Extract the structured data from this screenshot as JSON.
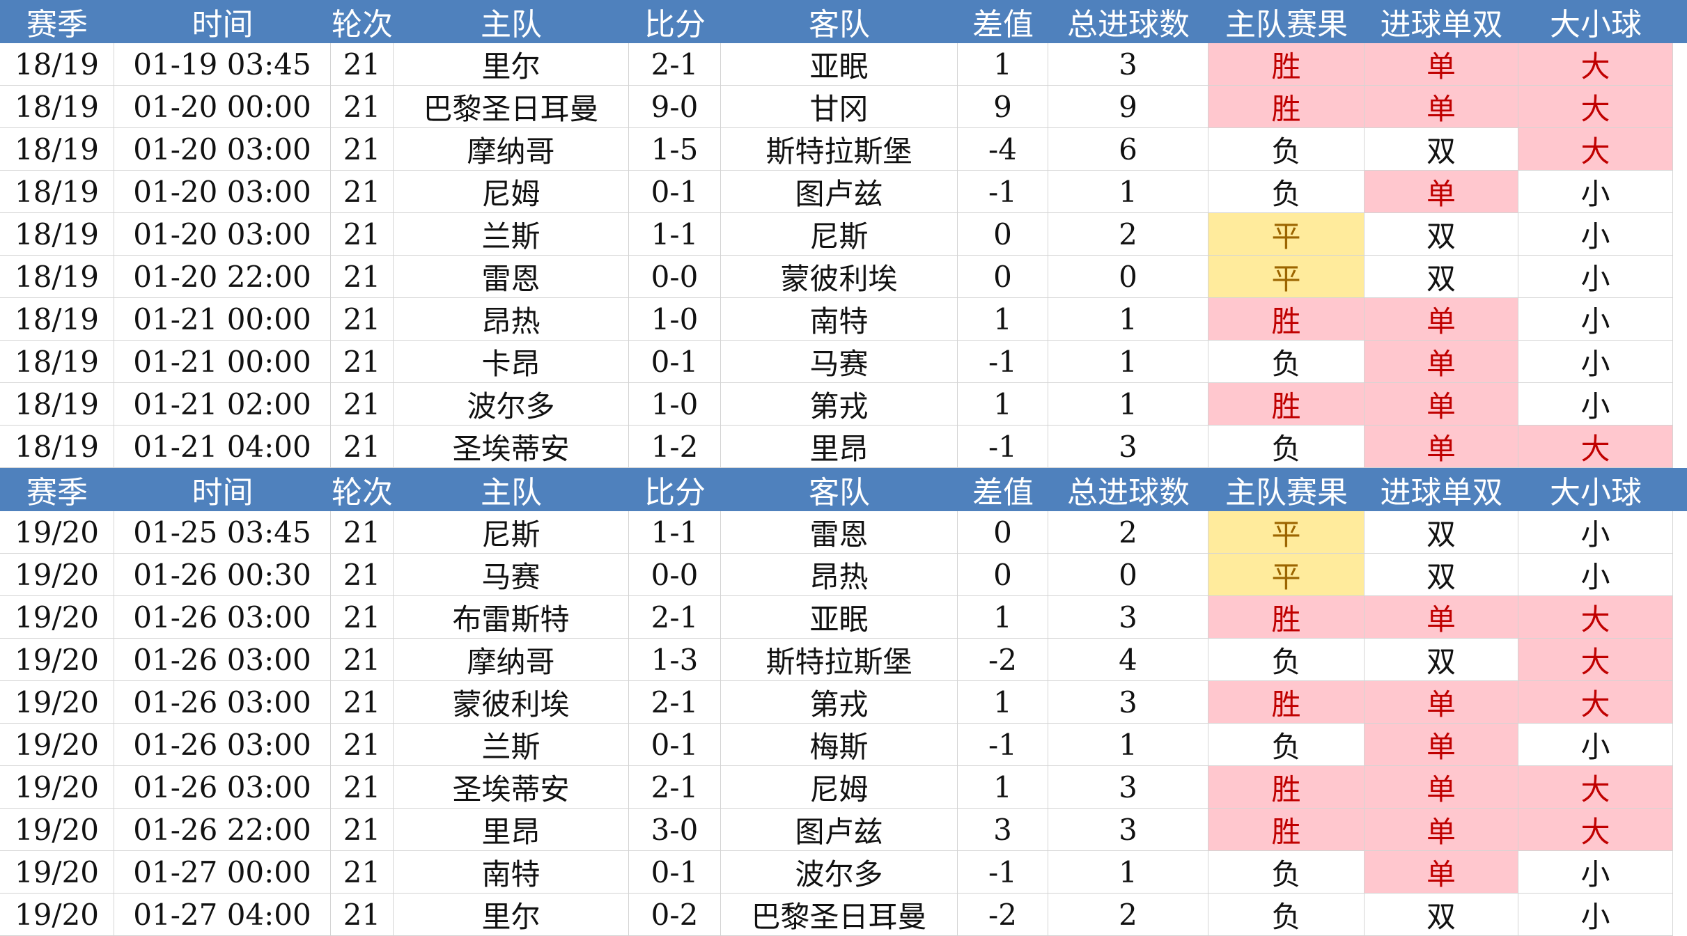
{
  "headers": [
    "赛季",
    "时间",
    "轮次",
    "主队",
    "比分",
    "客队",
    "差值",
    "总进球数",
    "主队赛果",
    "进球单双",
    "大小球"
  ],
  "block1": [
    [
      "18/19",
      "01-19 03:45",
      "21",
      "里尔",
      "2-1",
      "亚眠",
      "1",
      "3",
      "胜",
      "单",
      "大"
    ],
    [
      "18/19",
      "01-20 00:00",
      "21",
      "巴黎圣日耳曼",
      "9-0",
      "甘冈",
      "9",
      "9",
      "胜",
      "单",
      "大"
    ],
    [
      "18/19",
      "01-20 03:00",
      "21",
      "摩纳哥",
      "1-5",
      "斯特拉斯堡",
      "-4",
      "6",
      "负",
      "双",
      "大"
    ],
    [
      "18/19",
      "01-20 03:00",
      "21",
      "尼姆",
      "0-1",
      "图卢兹",
      "-1",
      "1",
      "负",
      "单",
      "小"
    ],
    [
      "18/19",
      "01-20 03:00",
      "21",
      "兰斯",
      "1-1",
      "尼斯",
      "0",
      "2",
      "平",
      "双",
      "小"
    ],
    [
      "18/19",
      "01-20 22:00",
      "21",
      "雷恩",
      "0-0",
      "蒙彼利埃",
      "0",
      "0",
      "平",
      "双",
      "小"
    ],
    [
      "18/19",
      "01-21 00:00",
      "21",
      "昂热",
      "1-0",
      "南特",
      "1",
      "1",
      "胜",
      "单",
      "小"
    ],
    [
      "18/19",
      "01-21 00:00",
      "21",
      "卡昂",
      "0-1",
      "马赛",
      "-1",
      "1",
      "负",
      "单",
      "小"
    ],
    [
      "18/19",
      "01-21 02:00",
      "21",
      "波尔多",
      "1-0",
      "第戎",
      "1",
      "1",
      "胜",
      "单",
      "小"
    ],
    [
      "18/19",
      "01-21 04:00",
      "21",
      "圣埃蒂安",
      "1-2",
      "里昂",
      "-1",
      "3",
      "负",
      "单",
      "大"
    ]
  ],
  "block2": [
    [
      "19/20",
      "01-25 03:45",
      "21",
      "尼斯",
      "1-1",
      "雷恩",
      "0",
      "2",
      "平",
      "双",
      "小"
    ],
    [
      "19/20",
      "01-26 00:30",
      "21",
      "马赛",
      "0-0",
      "昂热",
      "0",
      "0",
      "平",
      "双",
      "小"
    ],
    [
      "19/20",
      "01-26 03:00",
      "21",
      "布雷斯特",
      "2-1",
      "亚眠",
      "1",
      "3",
      "胜",
      "单",
      "大"
    ],
    [
      "19/20",
      "01-26 03:00",
      "21",
      "摩纳哥",
      "1-3",
      "斯特拉斯堡",
      "-2",
      "4",
      "负",
      "双",
      "大"
    ],
    [
      "19/20",
      "01-26 03:00",
      "21",
      "蒙彼利埃",
      "2-1",
      "第戎",
      "1",
      "3",
      "胜",
      "单",
      "大"
    ],
    [
      "19/20",
      "01-26 03:00",
      "21",
      "兰斯",
      "0-1",
      "梅斯",
      "-1",
      "1",
      "负",
      "单",
      "小"
    ],
    [
      "19/20",
      "01-26 03:00",
      "21",
      "圣埃蒂安",
      "2-1",
      "尼姆",
      "1",
      "3",
      "胜",
      "单",
      "大"
    ],
    [
      "19/20",
      "01-26 22:00",
      "21",
      "里昂",
      "3-0",
      "图卢兹",
      "3",
      "3",
      "胜",
      "单",
      "大"
    ],
    [
      "19/20",
      "01-27 00:00",
      "21",
      "南特",
      "0-1",
      "波尔多",
      "-1",
      "1",
      "负",
      "单",
      "小"
    ],
    [
      "19/20",
      "01-27 04:00",
      "21",
      "里尔",
      "0-2",
      "巴黎圣日耳曼",
      "-2",
      "2",
      "负",
      "双",
      "小"
    ]
  ],
  "colors": {
    "header_bg": "#4f81bd",
    "header_text": "#ffffff",
    "highlight_bg": "#ffc7ce",
    "highlight_text": "#c00000",
    "draw_bg": "#ffeb9c",
    "draw_text": "#9c6500"
  }
}
